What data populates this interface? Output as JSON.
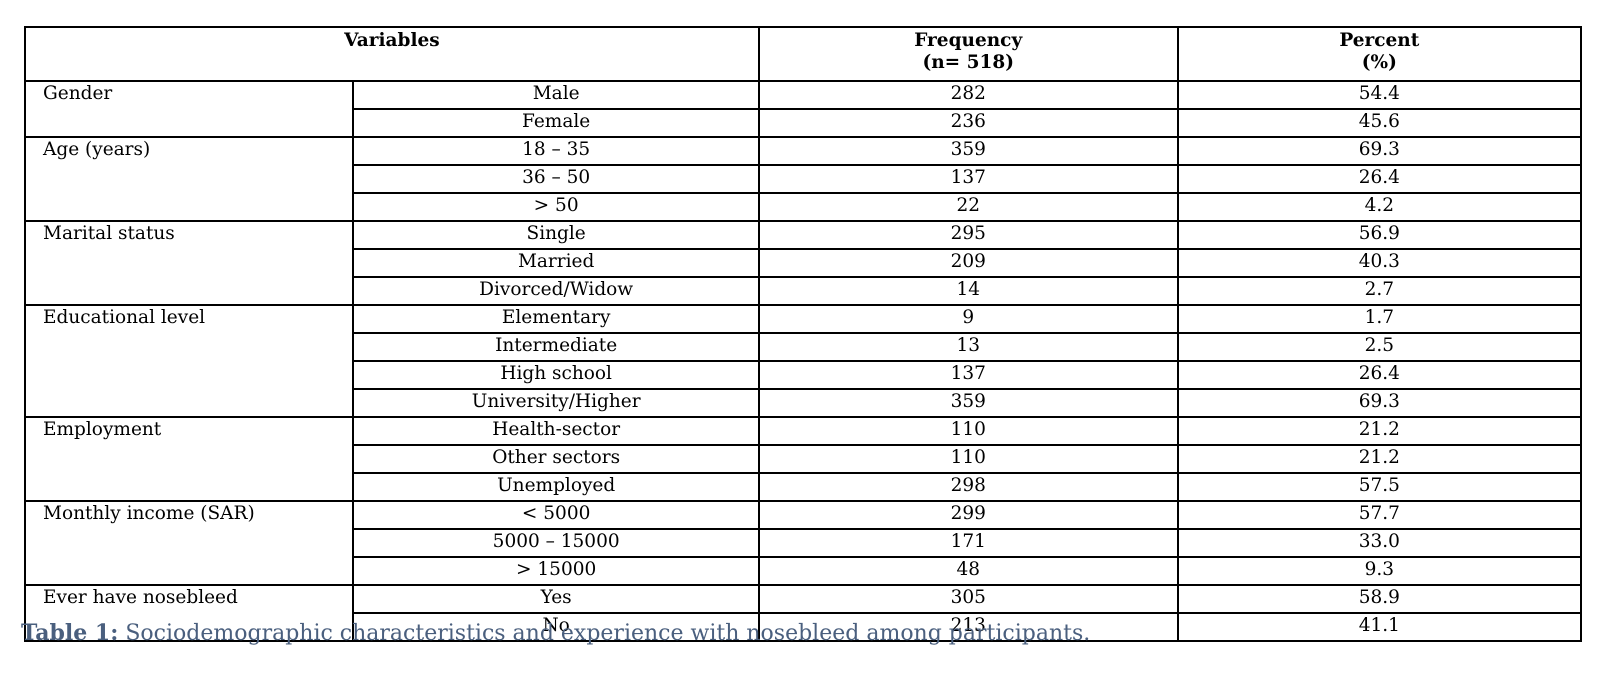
{
  "table": {
    "headers": {
      "variables": "Variables",
      "frequency_line1": "Frequency",
      "frequency_line2": "(n= 518)",
      "percent_line1": "Percent",
      "percent_line2": "(%)"
    },
    "groups": [
      {
        "name": "Gender",
        "rows": [
          {
            "category": "Male",
            "frequency": "282",
            "percent": "54.4"
          },
          {
            "category": "Female",
            "frequency": "236",
            "percent": "45.6"
          }
        ]
      },
      {
        "name": "Age (years)",
        "rows": [
          {
            "category": "18 – 35",
            "frequency": "359",
            "percent": "69.3"
          },
          {
            "category": "36 – 50",
            "frequency": "137",
            "percent": "26.4"
          },
          {
            "category": "> 50",
            "frequency": "22",
            "percent": "4.2"
          }
        ]
      },
      {
        "name": "Marital status",
        "rows": [
          {
            "category": "Single",
            "frequency": "295",
            "percent": "56.9"
          },
          {
            "category": "Married",
            "frequency": "209",
            "percent": "40.3"
          },
          {
            "category": "Divorced/Widow",
            "frequency": "14",
            "percent": "2.7"
          }
        ]
      },
      {
        "name": "Educational level",
        "rows": [
          {
            "category": "Elementary",
            "frequency": "9",
            "percent": "1.7"
          },
          {
            "category": "Intermediate",
            "frequency": "13",
            "percent": "2.5"
          },
          {
            "category": "High school",
            "frequency": "137",
            "percent": "26.4"
          },
          {
            "category": "University/Higher",
            "frequency": "359",
            "percent": "69.3"
          }
        ]
      },
      {
        "name": "Employment",
        "rows": [
          {
            "category": "Health-sector",
            "frequency": "110",
            "percent": "21.2"
          },
          {
            "category": "Other sectors",
            "frequency": "110",
            "percent": "21.2"
          },
          {
            "category": "Unemployed",
            "frequency": "298",
            "percent": "57.5"
          }
        ]
      },
      {
        "name": "Monthly income (SAR)",
        "rows": [
          {
            "category": "< 5000",
            "frequency": "299",
            "percent": "57.7"
          },
          {
            "category": "5000 – 15000",
            "frequency": "171",
            "percent": "33.0"
          },
          {
            "category": "> 15000",
            "frequency": "48",
            "percent": "9.3"
          }
        ]
      },
      {
        "name": "Ever have nosebleed",
        "rows": [
          {
            "category": "Yes",
            "frequency": "305",
            "percent": "58.9"
          },
          {
            "category": "No",
            "frequency": "213",
            "percent": "41.1"
          }
        ]
      }
    ]
  },
  "caption": {
    "label": "Table 1:",
    "text": " Sociodemographic characteristics and experience with nosebleed among participants."
  },
  "colors": {
    "caption_text": "#4a5f7e",
    "border": "#000000"
  }
}
